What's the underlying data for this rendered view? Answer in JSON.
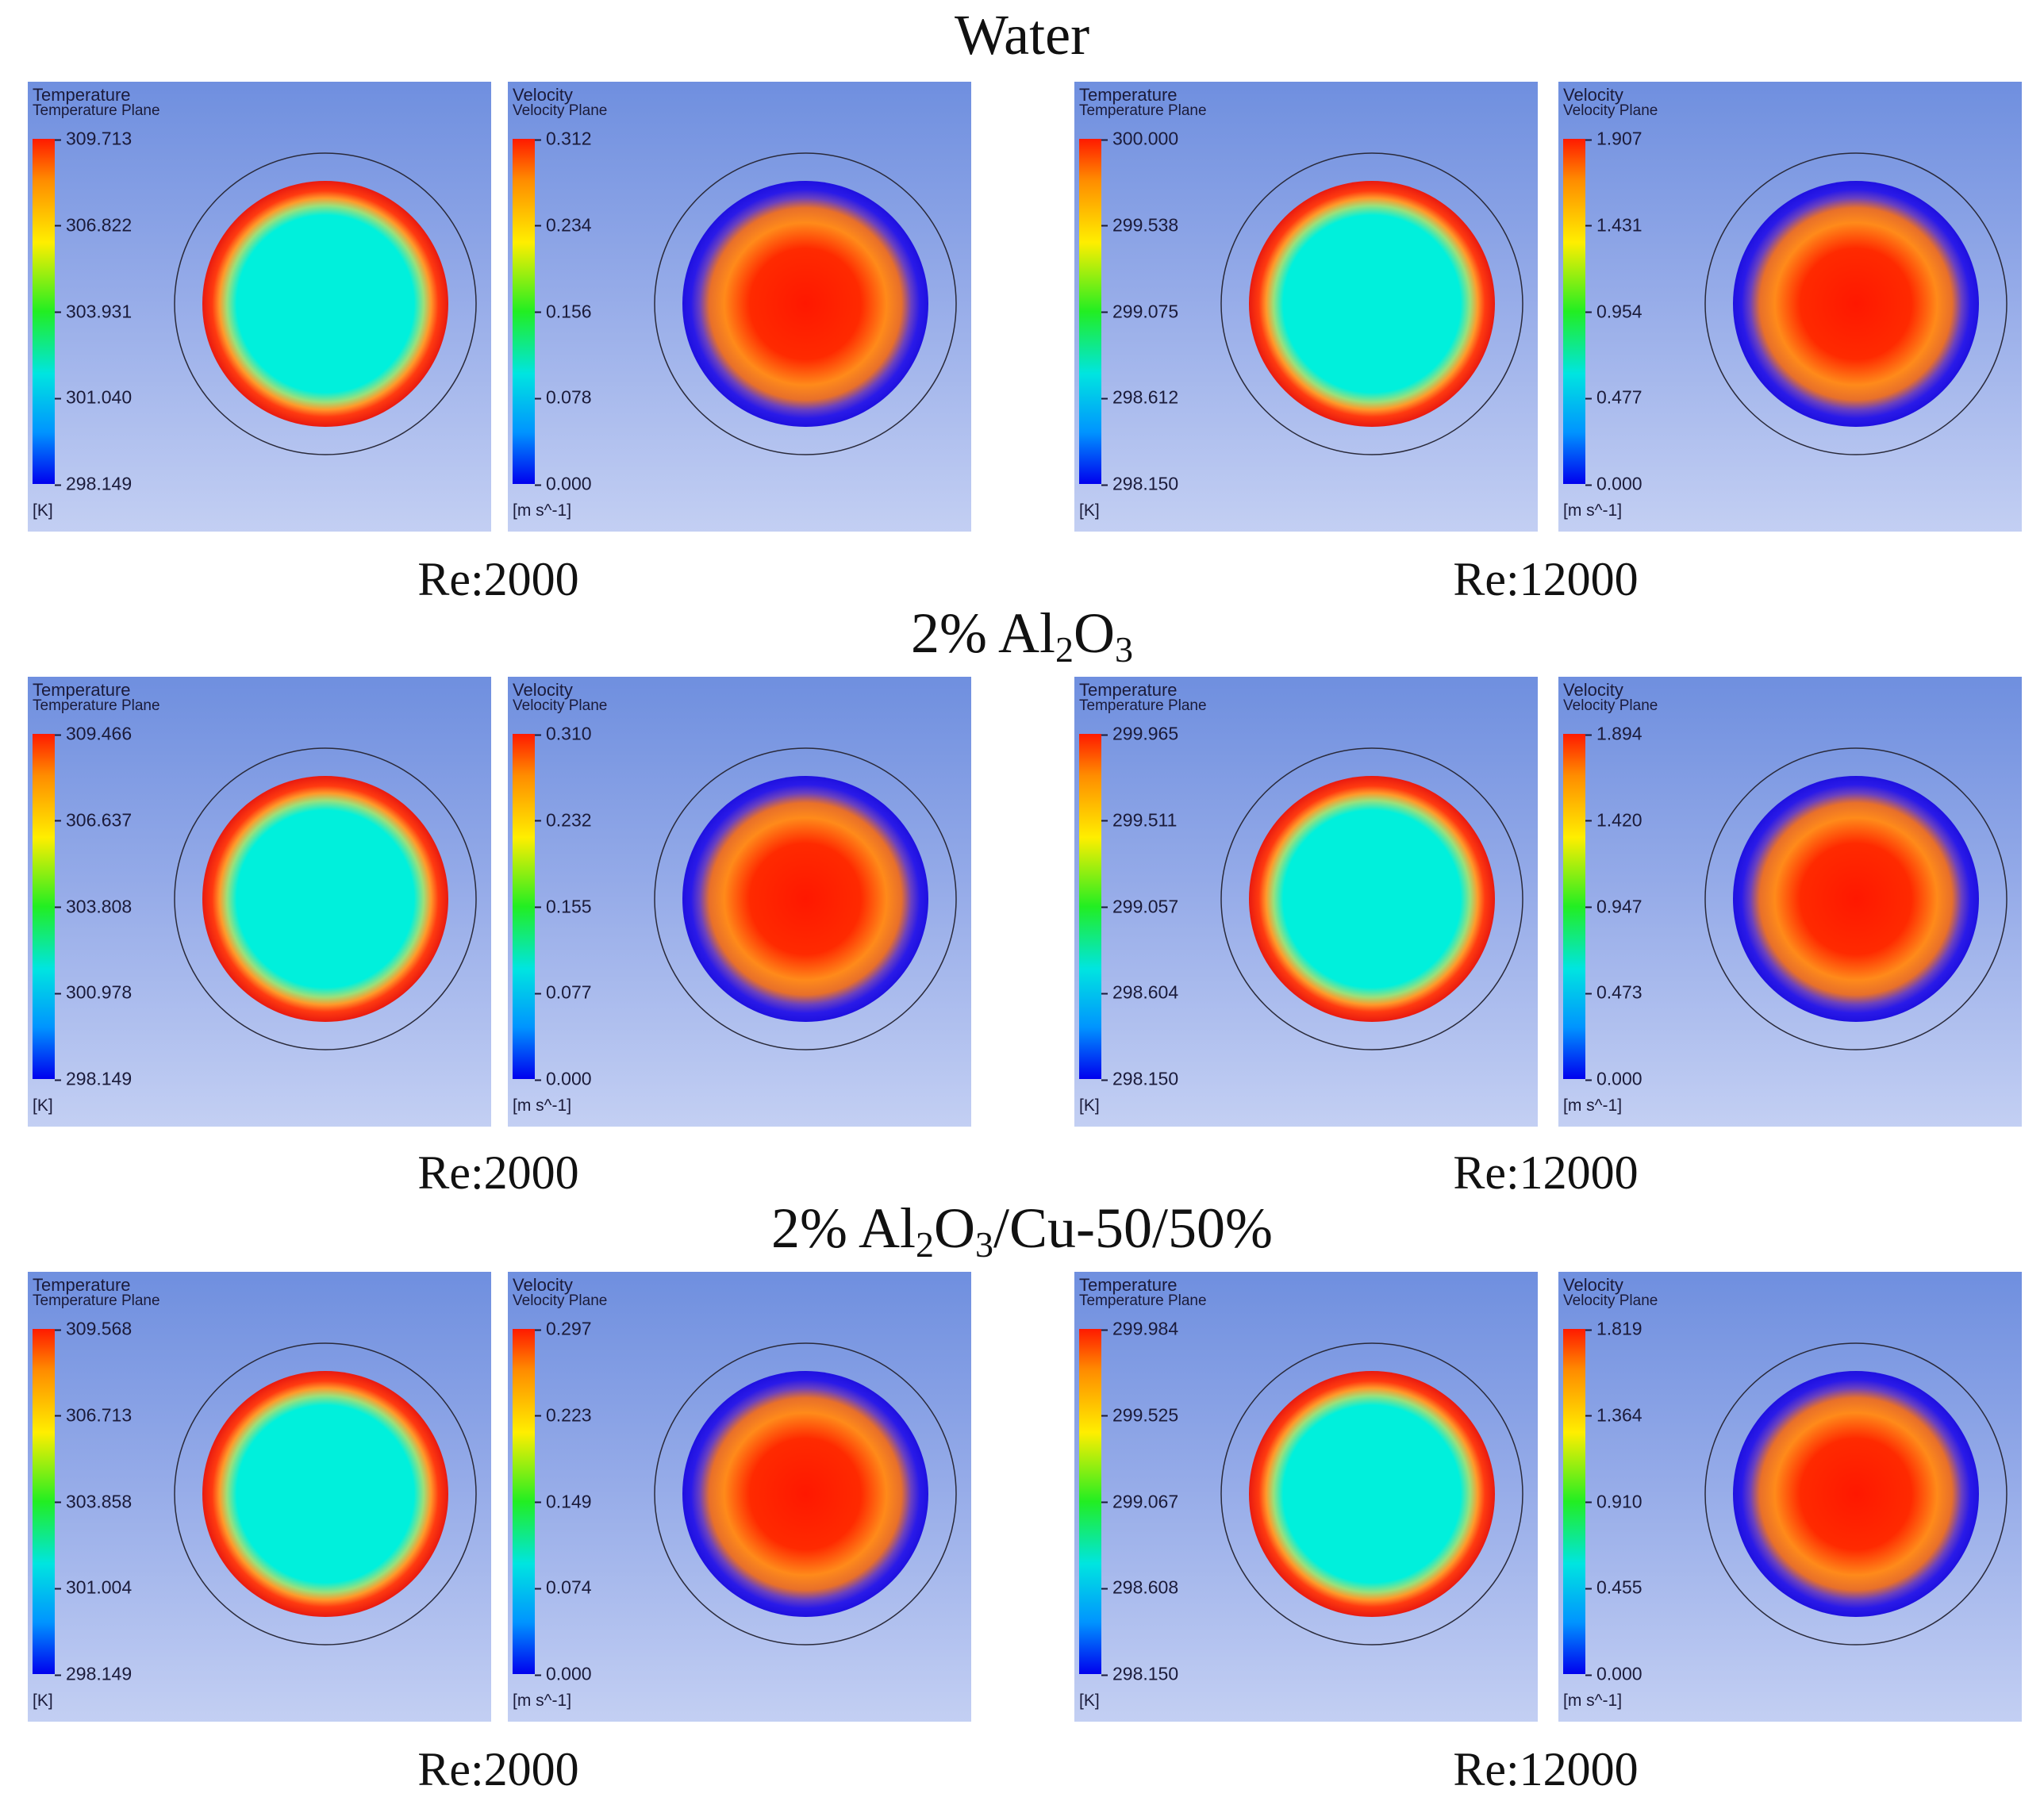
{
  "sections": [
    {
      "title_main": "Water",
      "title_sub": "",
      "title_tail": "",
      "title_sub2": "",
      "title_tail2": "",
      "panels": [
        {
          "kind": "temperature",
          "title": "Temperature",
          "subtitle": "Temperature Plane",
          "ticks": [
            "309.713",
            "306.822",
            "303.931",
            "301.040",
            "298.149"
          ],
          "unit": "[K]"
        },
        {
          "kind": "velocity",
          "title": "Velocity",
          "subtitle": "Velocity Plane",
          "ticks": [
            "0.312",
            "0.234",
            "0.156",
            "0.078",
            "0.000"
          ],
          "unit": "[m s^-1]"
        },
        {
          "kind": "temperature",
          "title": "Temperature",
          "subtitle": "Temperature Plane",
          "ticks": [
            "300.000",
            "299.538",
            "299.075",
            "298.612",
            "298.150"
          ],
          "unit": "[K]"
        },
        {
          "kind": "velocity",
          "title": "Velocity",
          "subtitle": "Velocity Plane",
          "ticks": [
            "1.907",
            "1.431",
            "0.954",
            "0.477",
            "0.000"
          ],
          "unit": "[m s^-1]"
        }
      ],
      "re_left": "Re:2000",
      "re_right": "Re:12000"
    },
    {
      "title_main": "2% Al",
      "title_sub": "2",
      "title_tail": "O",
      "title_sub2": "3",
      "title_tail2": "",
      "panels": [
        {
          "kind": "temperature",
          "title": "Temperature",
          "subtitle": "Temperature Plane",
          "ticks": [
            "309.466",
            "306.637",
            "303.808",
            "300.978",
            "298.149"
          ],
          "unit": "[K]"
        },
        {
          "kind": "velocity",
          "title": "Velocity",
          "subtitle": "Velocity Plane",
          "ticks": [
            "0.310",
            "0.232",
            "0.155",
            "0.077",
            "0.000"
          ],
          "unit": "[m s^-1]"
        },
        {
          "kind": "temperature",
          "title": "Temperature",
          "subtitle": "Temperature Plane",
          "ticks": [
            "299.965",
            "299.511",
            "299.057",
            "298.604",
            "298.150"
          ],
          "unit": "[K]"
        },
        {
          "kind": "velocity",
          "title": "Velocity",
          "subtitle": "Velocity Plane",
          "ticks": [
            "1.894",
            "1.420",
            "0.947",
            "0.473",
            "0.000"
          ],
          "unit": "[m s^-1]"
        }
      ],
      "re_left": "Re:2000",
      "re_right": "Re:12000"
    },
    {
      "title_main": "2% Al",
      "title_sub": "2",
      "title_tail": "O",
      "title_sub2": "3",
      "title_tail2": "/Cu-50/50%",
      "panels": [
        {
          "kind": "temperature",
          "title": "Temperature",
          "subtitle": "Temperature Plane",
          "ticks": [
            "309.568",
            "306.713",
            "303.858",
            "301.004",
            "298.149"
          ],
          "unit": "[K]"
        },
        {
          "kind": "velocity",
          "title": "Velocity",
          "subtitle": "Velocity Plane",
          "ticks": [
            "0.297",
            "0.223",
            "0.149",
            "0.074",
            "0.000"
          ],
          "unit": "[m s^-1]"
        },
        {
          "kind": "temperature",
          "title": "Temperature",
          "subtitle": "Temperature Plane",
          "ticks": [
            "299.984",
            "299.525",
            "299.067",
            "298.608",
            "298.150"
          ],
          "unit": "[K]"
        },
        {
          "kind": "velocity",
          "title": "Velocity",
          "subtitle": "Velocity Plane",
          "ticks": [
            "1.819",
            "1.364",
            "0.910",
            "0.455",
            "0.000"
          ],
          "unit": "[m s^-1]"
        }
      ],
      "re_left": "Re:2000",
      "re_right": "Re:12000"
    }
  ]
}
